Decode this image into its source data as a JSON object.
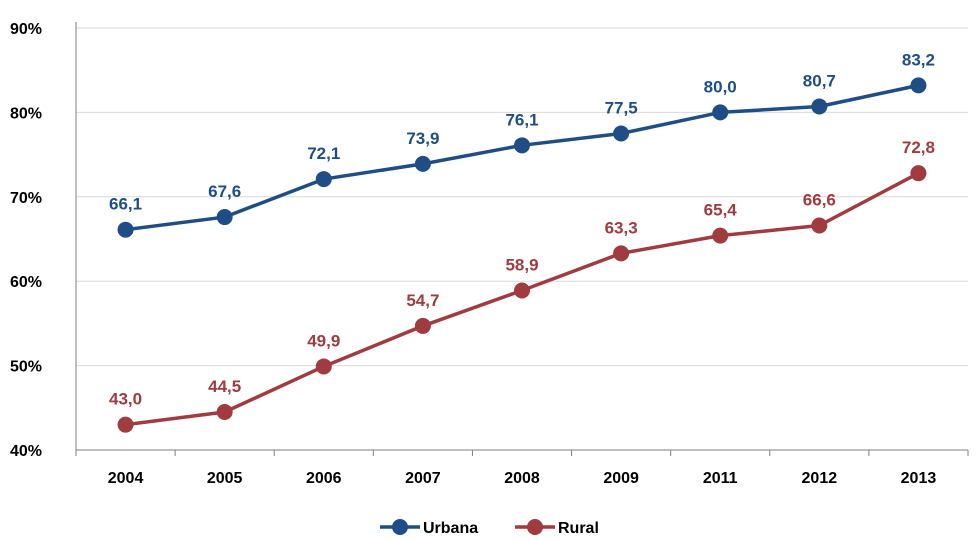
{
  "chart_data": {
    "type": "line",
    "categories": [
      "2004",
      "2005",
      "2006",
      "2007",
      "2008",
      "2009",
      "2011",
      "2012",
      "2013"
    ],
    "series": [
      {
        "name": "Urbana",
        "color": "#1f4e87",
        "values": [
          66.1,
          67.6,
          72.1,
          73.9,
          76.1,
          77.5,
          80.0,
          80.7,
          83.2
        ],
        "labels": [
          "66,1",
          "67,6",
          "72,1",
          "73,9",
          "76,1",
          "77,5",
          "80,0",
          "80,7",
          "83,2"
        ]
      },
      {
        "name": "Rural",
        "color": "#a03b3f",
        "values": [
          43.0,
          44.5,
          49.9,
          54.7,
          58.9,
          63.3,
          65.4,
          66.6,
          72.8
        ],
        "labels": [
          "43,0",
          "44,5",
          "49,9",
          "54,7",
          "58,9",
          "63,3",
          "65,4",
          "66,6",
          "72,8"
        ]
      }
    ],
    "ylim": [
      40,
      90
    ],
    "yticks": [
      {
        "value": 40,
        "label": "40%"
      },
      {
        "value": 50,
        "label": "50%"
      },
      {
        "value": 60,
        "label": "60%"
      },
      {
        "value": 70,
        "label": "70%"
      },
      {
        "value": 80,
        "label": "80%"
      },
      {
        "value": 90,
        "label": "90%"
      }
    ],
    "grid": true,
    "legend_position": "bottom-center",
    "title": "",
    "xlabel": "",
    "ylabel": ""
  }
}
